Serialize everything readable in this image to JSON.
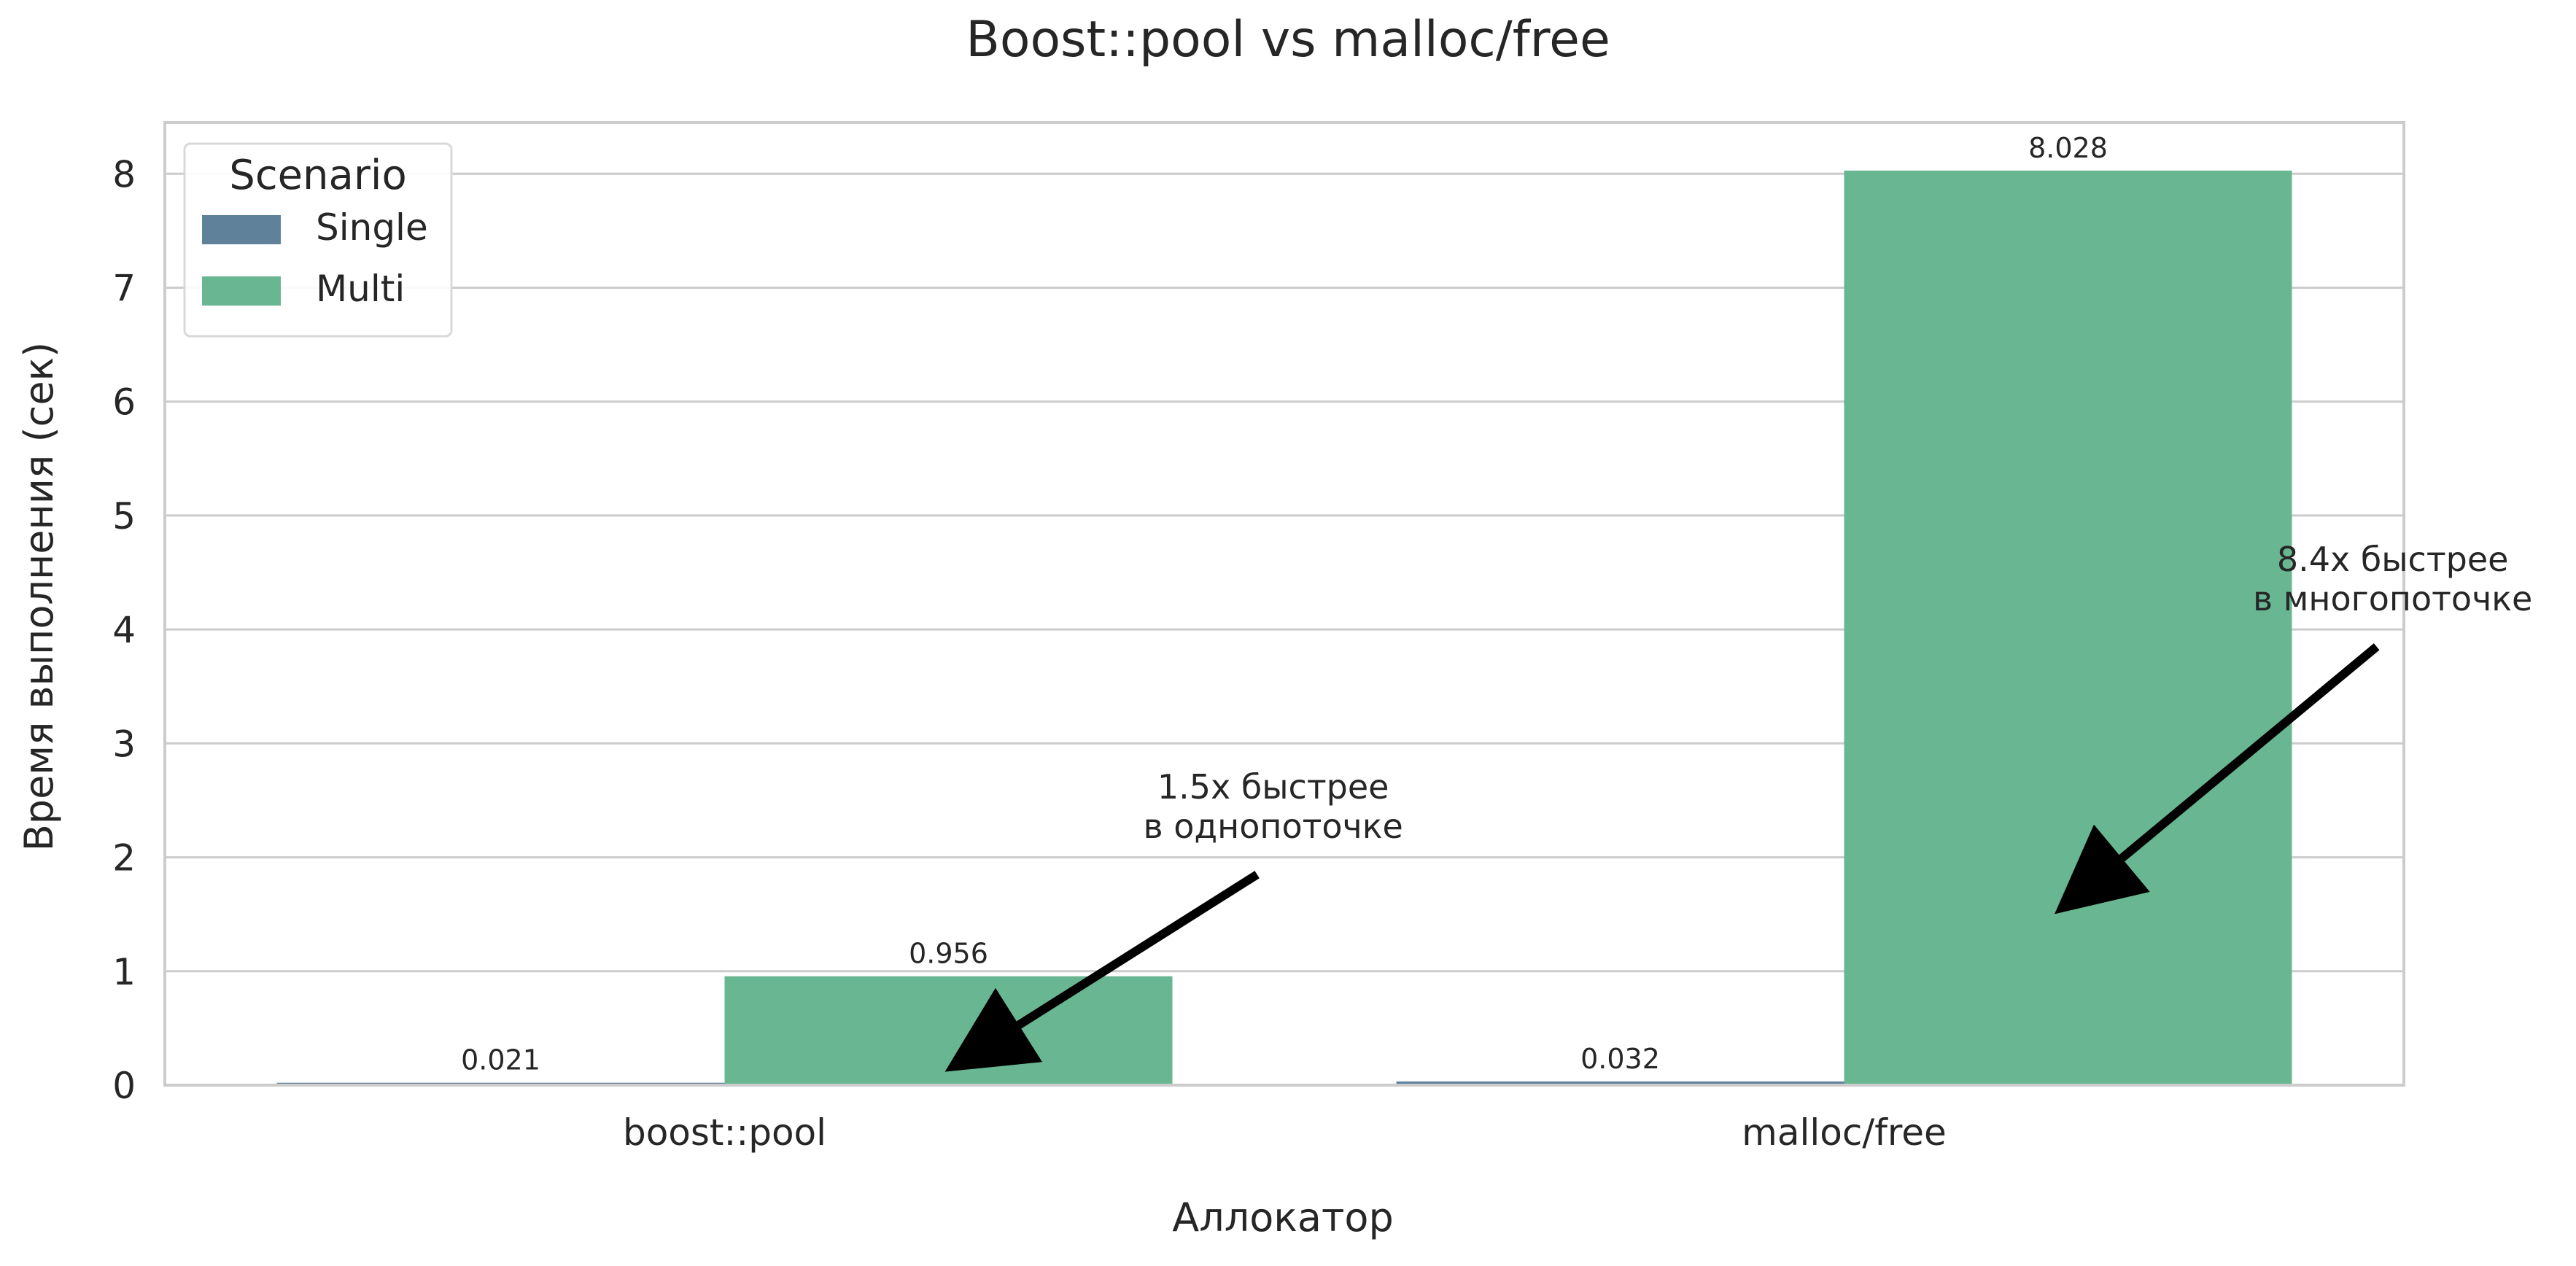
{
  "chart_data": {
    "type": "bar",
    "title": "Boost::pool vs malloc/free",
    "xlabel": "Аллокатор",
    "ylabel": "Время выполнения (сек)",
    "categories": [
      "boost::pool",
      "malloc/free"
    ],
    "series": [
      {
        "name": "Single",
        "values": [
          0.021,
          0.032
        ],
        "value_labels": [
          "0.021",
          "0.032"
        ],
        "color": "#5f8199"
      },
      {
        "name": "Multi",
        "values": [
          0.956,
          8.028
        ],
        "value_labels": [
          "0.956",
          "8.028"
        ],
        "color": "#69b693"
      }
    ],
    "ylim": [
      0,
      8.45
    ],
    "yticks": [
      0,
      1,
      2,
      3,
      4,
      5,
      6,
      7,
      8
    ],
    "grid": true,
    "legend": {
      "title": "Scenario",
      "placement": "top-left"
    },
    "annotations": [
      {
        "lines": [
          "1.5x быстрее",
          "в однопоточке"
        ],
        "text_at": {
          "category_pos": 0.49,
          "y": 1.9
        },
        "arrow_to": {
          "category_pos": 0.21,
          "y": 0.2
        }
      },
      {
        "lines": [
          "8.4x быстрее",
          "в многопоточке"
        ],
        "text_at": {
          "category_pos": 1.49,
          "y": 3.9
        },
        "arrow_to": {
          "category_pos": 1.2,
          "y": 1.6
        }
      }
    ],
    "colors": {
      "frame": "#cccccc",
      "grid": "#cccccc",
      "text": "#262626",
      "arrow": "#000000"
    }
  }
}
